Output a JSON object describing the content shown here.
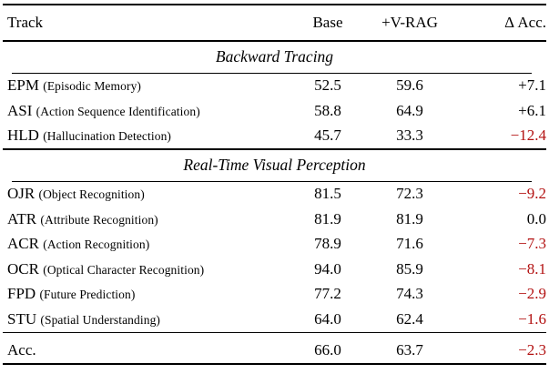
{
  "colors": {
    "text": "#000000",
    "negative_delta": "#b31212",
    "background": "#ffffff"
  },
  "header": {
    "track": "Track",
    "base": "Base",
    "vrag": "+V-RAG",
    "delta": "Δ Acc."
  },
  "sections": [
    {
      "title": "Backward Tracing",
      "rows": [
        {
          "acronym": "EPM",
          "description": "(Episodic Memory)",
          "base": "52.5",
          "vrag": "59.6",
          "delta": "+7.1"
        },
        {
          "acronym": "ASI",
          "description": "(Action Sequence Identification)",
          "base": "58.8",
          "vrag": "64.9",
          "delta": "+6.1"
        },
        {
          "acronym": "HLD",
          "description": "(Hallucination Detection)",
          "base": "45.7",
          "vrag": "33.3",
          "delta": "−12.4"
        }
      ]
    },
    {
      "title": "Real-Time Visual Perception",
      "rows": [
        {
          "acronym": "OJR",
          "description": "(Object Recognition)",
          "base": "81.5",
          "vrag": "72.3",
          "delta": "−9.2"
        },
        {
          "acronym": "ATR",
          "description": "(Attribute Recognition)",
          "base": "81.9",
          "vrag": "81.9",
          "delta": "0.0"
        },
        {
          "acronym": "ACR",
          "description": "(Action Recognition)",
          "base": "78.9",
          "vrag": "71.6",
          "delta": "−7.3"
        },
        {
          "acronym": "OCR",
          "description": "(Optical Character Recognition)",
          "base": "94.0",
          "vrag": "85.9",
          "delta": "−8.1"
        },
        {
          "acronym": "FPD",
          "description": "(Future Prediction)",
          "base": "77.2",
          "vrag": "74.3",
          "delta": "−2.9"
        },
        {
          "acronym": "STU",
          "description": "(Spatial Understanding)",
          "base": "64.0",
          "vrag": "62.4",
          "delta": "−1.6"
        }
      ]
    }
  ],
  "footer": {
    "label": "Acc.",
    "base": "66.0",
    "vrag": "63.7",
    "delta": "−2.3"
  }
}
